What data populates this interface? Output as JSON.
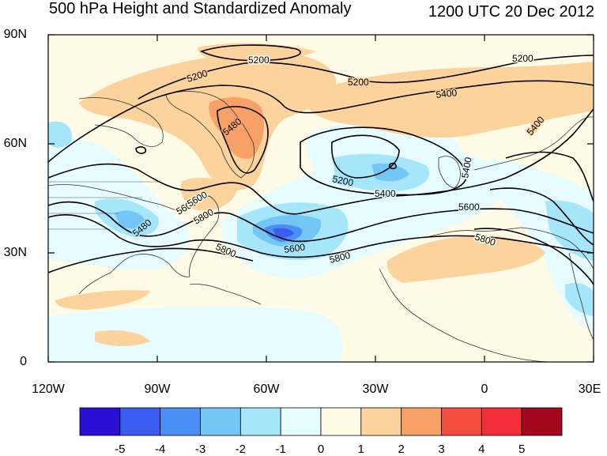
{
  "title_left": "500 hPa Height and Standardized Anomaly",
  "title_right": "1200 UTC 20 Dec 2012",
  "latitude_labels": [
    "90N",
    "60N",
    "30N",
    "0"
  ],
  "longitude_labels": [
    "120W",
    "90W",
    "60W",
    "30W",
    "0",
    "30E"
  ],
  "colorbar": {
    "labels": [
      "-5",
      "-4",
      "-3",
      "-2",
      "-1",
      "0",
      "1",
      "2",
      "3",
      "4",
      "5"
    ],
    "colors": [
      "#2a0fd6",
      "#3a5cf0",
      "#4a8ff5",
      "#74c6f7",
      "#a6e6fb",
      "#e6fcff",
      "#fffbe6",
      "#fcd39c",
      "#f7a068",
      "#f24d3e",
      "#f22e3a",
      "#a3061e"
    ]
  },
  "contour_labels": [
    "5200",
    "5200",
    "5200",
    "5200",
    "5400",
    "5480",
    "5400",
    "5200",
    "5400",
    "5600",
    "5600",
    "5800",
    "5800",
    "5800",
    "5600",
    "5800",
    "5480",
    "5600",
    "5400"
  ],
  "colors": {
    "positive_light": "#fcd39c",
    "positive_mid": "#f7a068",
    "negative_light": "#a6e6fb",
    "negative_mid": "#74c6f7",
    "negative_strong": "#4a8ff5",
    "negative_max": "#3a5cf0",
    "neutral_pos": "#fffbe6",
    "neutral_neg": "#e6fcff"
  }
}
